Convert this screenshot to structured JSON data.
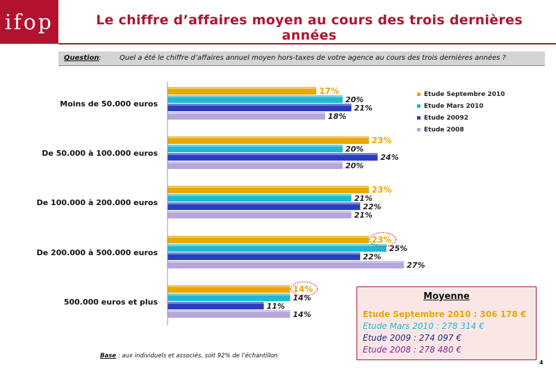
{
  "logo": "ifop",
  "title": "Le chiffre d’affaires moyen au cours des trois dernières années",
  "question": {
    "label": "Question",
    "colon": ":",
    "text": "Quel a été le chiffre d’affaires annuel moyen hors-taxes de votre agence au cours des trois dernières années ?"
  },
  "chart_data": {
    "type": "bar",
    "orientation": "horizontal",
    "categories": [
      "Moins de 50.000 euros",
      "De 50.000 à 100.000 euros",
      "De 100.000 à 200.000 euros",
      "De 200.000 à 500.000 euros",
      "500.000 euros et plus"
    ],
    "series": [
      {
        "name": "Etude Septembre 2010",
        "color": "#e8a800",
        "values": [
          17,
          23,
          23,
          23,
          14
        ]
      },
      {
        "name": "Etude Mars 2010",
        "color": "#1fb8d4",
        "values": [
          20,
          20,
          21,
          25,
          14
        ]
      },
      {
        "name": "Etude 20092",
        "color": "#2a3fc0",
        "values": [
          21,
          24,
          22,
          22,
          11
        ]
      },
      {
        "name": "Etude 2008",
        "color": "#b6a6dc",
        "values": [
          18,
          20,
          21,
          27,
          14
        ]
      }
    ],
    "value_suffix": "%",
    "circled": [
      {
        "category": 3,
        "series": 0
      },
      {
        "category": 4,
        "series": 0
      }
    ],
    "legend_position": "top-right",
    "grid": false
  },
  "average": {
    "title": "Moyenne",
    "lines": [
      {
        "text": "Etude Septembre 2010 : 306 178 €",
        "color": "#e8a800"
      },
      {
        "text": "Etude Mars 2010 : 278 314 €",
        "color": "#1fb8d4"
      },
      {
        "text": "Etude 2009 : 274 097 €",
        "color": "#1a2b8c"
      },
      {
        "text": "Etude 2008 : 278 480 €",
        "color": "#7a2aa0"
      }
    ]
  },
  "base_note": {
    "label": "Base",
    "text": " : aux individuels et associés, soit 92% de l’échantillon"
  },
  "page_number": "4"
}
